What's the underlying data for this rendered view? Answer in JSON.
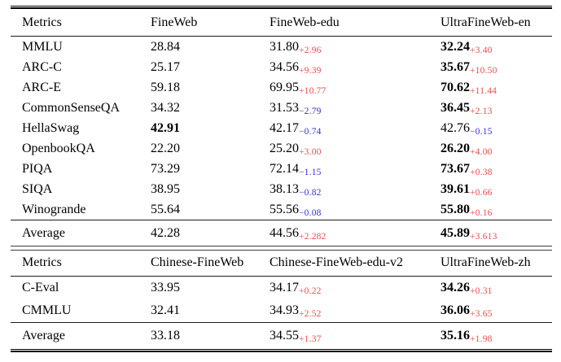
{
  "colors": {
    "positive_delta": "#ee4e4b",
    "negative_delta": "#2f2fe3",
    "text": "#000000",
    "rule": "#000000"
  },
  "tables": [
    {
      "name": "english-benchmarks",
      "headers": [
        "Metrics",
        "FineWeb",
        "FineWeb-edu",
        "UltraFineWeb-en"
      ],
      "rows": [
        {
          "metric": "MMLU",
          "cells": [
            {
              "value": "28.84"
            },
            {
              "value": "31.80",
              "delta": "+2.96",
              "positive": true
            },
            {
              "value": "32.24",
              "delta": "+3.40",
              "positive": true,
              "bold": true
            }
          ]
        },
        {
          "metric": "ARC-C",
          "cells": [
            {
              "value": "25.17"
            },
            {
              "value": "34.56",
              "delta": "+9.39",
              "positive": true
            },
            {
              "value": "35.67",
              "delta": "+10.50",
              "positive": true,
              "bold": true
            }
          ]
        },
        {
          "metric": "ARC-E",
          "cells": [
            {
              "value": "59.18"
            },
            {
              "value": "69.95",
              "delta": "+10.77",
              "positive": true
            },
            {
              "value": "70.62",
              "delta": "+11.44",
              "positive": true,
              "bold": true
            }
          ]
        },
        {
          "metric": "CommonSenseQA",
          "cells": [
            {
              "value": "34.32"
            },
            {
              "value": "31.53",
              "delta": "−2.79",
              "positive": false
            },
            {
              "value": "36.45",
              "delta": "+2.13",
              "positive": true,
              "bold": true
            }
          ]
        },
        {
          "metric": "HellaSwag",
          "cells": [
            {
              "value": "42.91",
              "bold": true
            },
            {
              "value": "42.17",
              "delta": "−0.74",
              "positive": false
            },
            {
              "value": "42.76",
              "delta": "−0.15",
              "positive": false
            }
          ]
        },
        {
          "metric": "OpenbookQA",
          "cells": [
            {
              "value": "22.20"
            },
            {
              "value": "25.20",
              "delta": "+3.00",
              "positive": true
            },
            {
              "value": "26.20",
              "delta": "+4.00",
              "positive": true,
              "bold": true
            }
          ]
        },
        {
          "metric": "PIQA",
          "cells": [
            {
              "value": "73.29"
            },
            {
              "value": "72.14",
              "delta": "−1.15",
              "positive": false
            },
            {
              "value": "73.67",
              "delta": "+0.38",
              "positive": true,
              "bold": true
            }
          ]
        },
        {
          "metric": "SIQA",
          "cells": [
            {
              "value": "38.95"
            },
            {
              "value": "38.13",
              "delta": "−0.82",
              "positive": false
            },
            {
              "value": "39.61",
              "delta": "+0.66",
              "positive": true,
              "bold": true
            }
          ]
        },
        {
          "metric": "Winogrande",
          "cells": [
            {
              "value": "55.64"
            },
            {
              "value": "55.56",
              "delta": "−0.08",
              "positive": false
            },
            {
              "value": "55.80",
              "delta": "+0.16",
              "positive": true,
              "bold": true
            }
          ]
        }
      ],
      "average": {
        "metric": "Average",
        "cells": [
          {
            "value": "42.28"
          },
          {
            "value": "44.56",
            "delta": "+2.282",
            "positive": true
          },
          {
            "value": "45.89",
            "delta": "+3.613",
            "positive": true,
            "bold": true
          }
        ]
      }
    },
    {
      "name": "chinese-benchmarks",
      "headers": [
        "Metrics",
        "Chinese-FineWeb",
        "Chinese-FineWeb-edu-v2",
        "UltraFineWeb-zh"
      ],
      "rows": [
        {
          "metric": "C-Eval",
          "cells": [
            {
              "value": "33.95"
            },
            {
              "value": "34.17",
              "delta": "+0.22",
              "positive": true
            },
            {
              "value": "34.26",
              "delta": "+0.31",
              "positive": true,
              "bold": true
            }
          ]
        },
        {
          "metric": "CMMLU",
          "cells": [
            {
              "value": "32.41"
            },
            {
              "value": "34.93",
              "delta": "+2.52",
              "positive": true
            },
            {
              "value": "36.06",
              "delta": "+3.65",
              "positive": true,
              "bold": true
            }
          ]
        }
      ],
      "average": {
        "metric": "Average",
        "cells": [
          {
            "value": "33.18"
          },
          {
            "value": "34.55",
            "delta": "+1.37",
            "positive": true
          },
          {
            "value": "35.16",
            "delta": "+1.98",
            "positive": true,
            "bold": true
          }
        ]
      }
    }
  ]
}
